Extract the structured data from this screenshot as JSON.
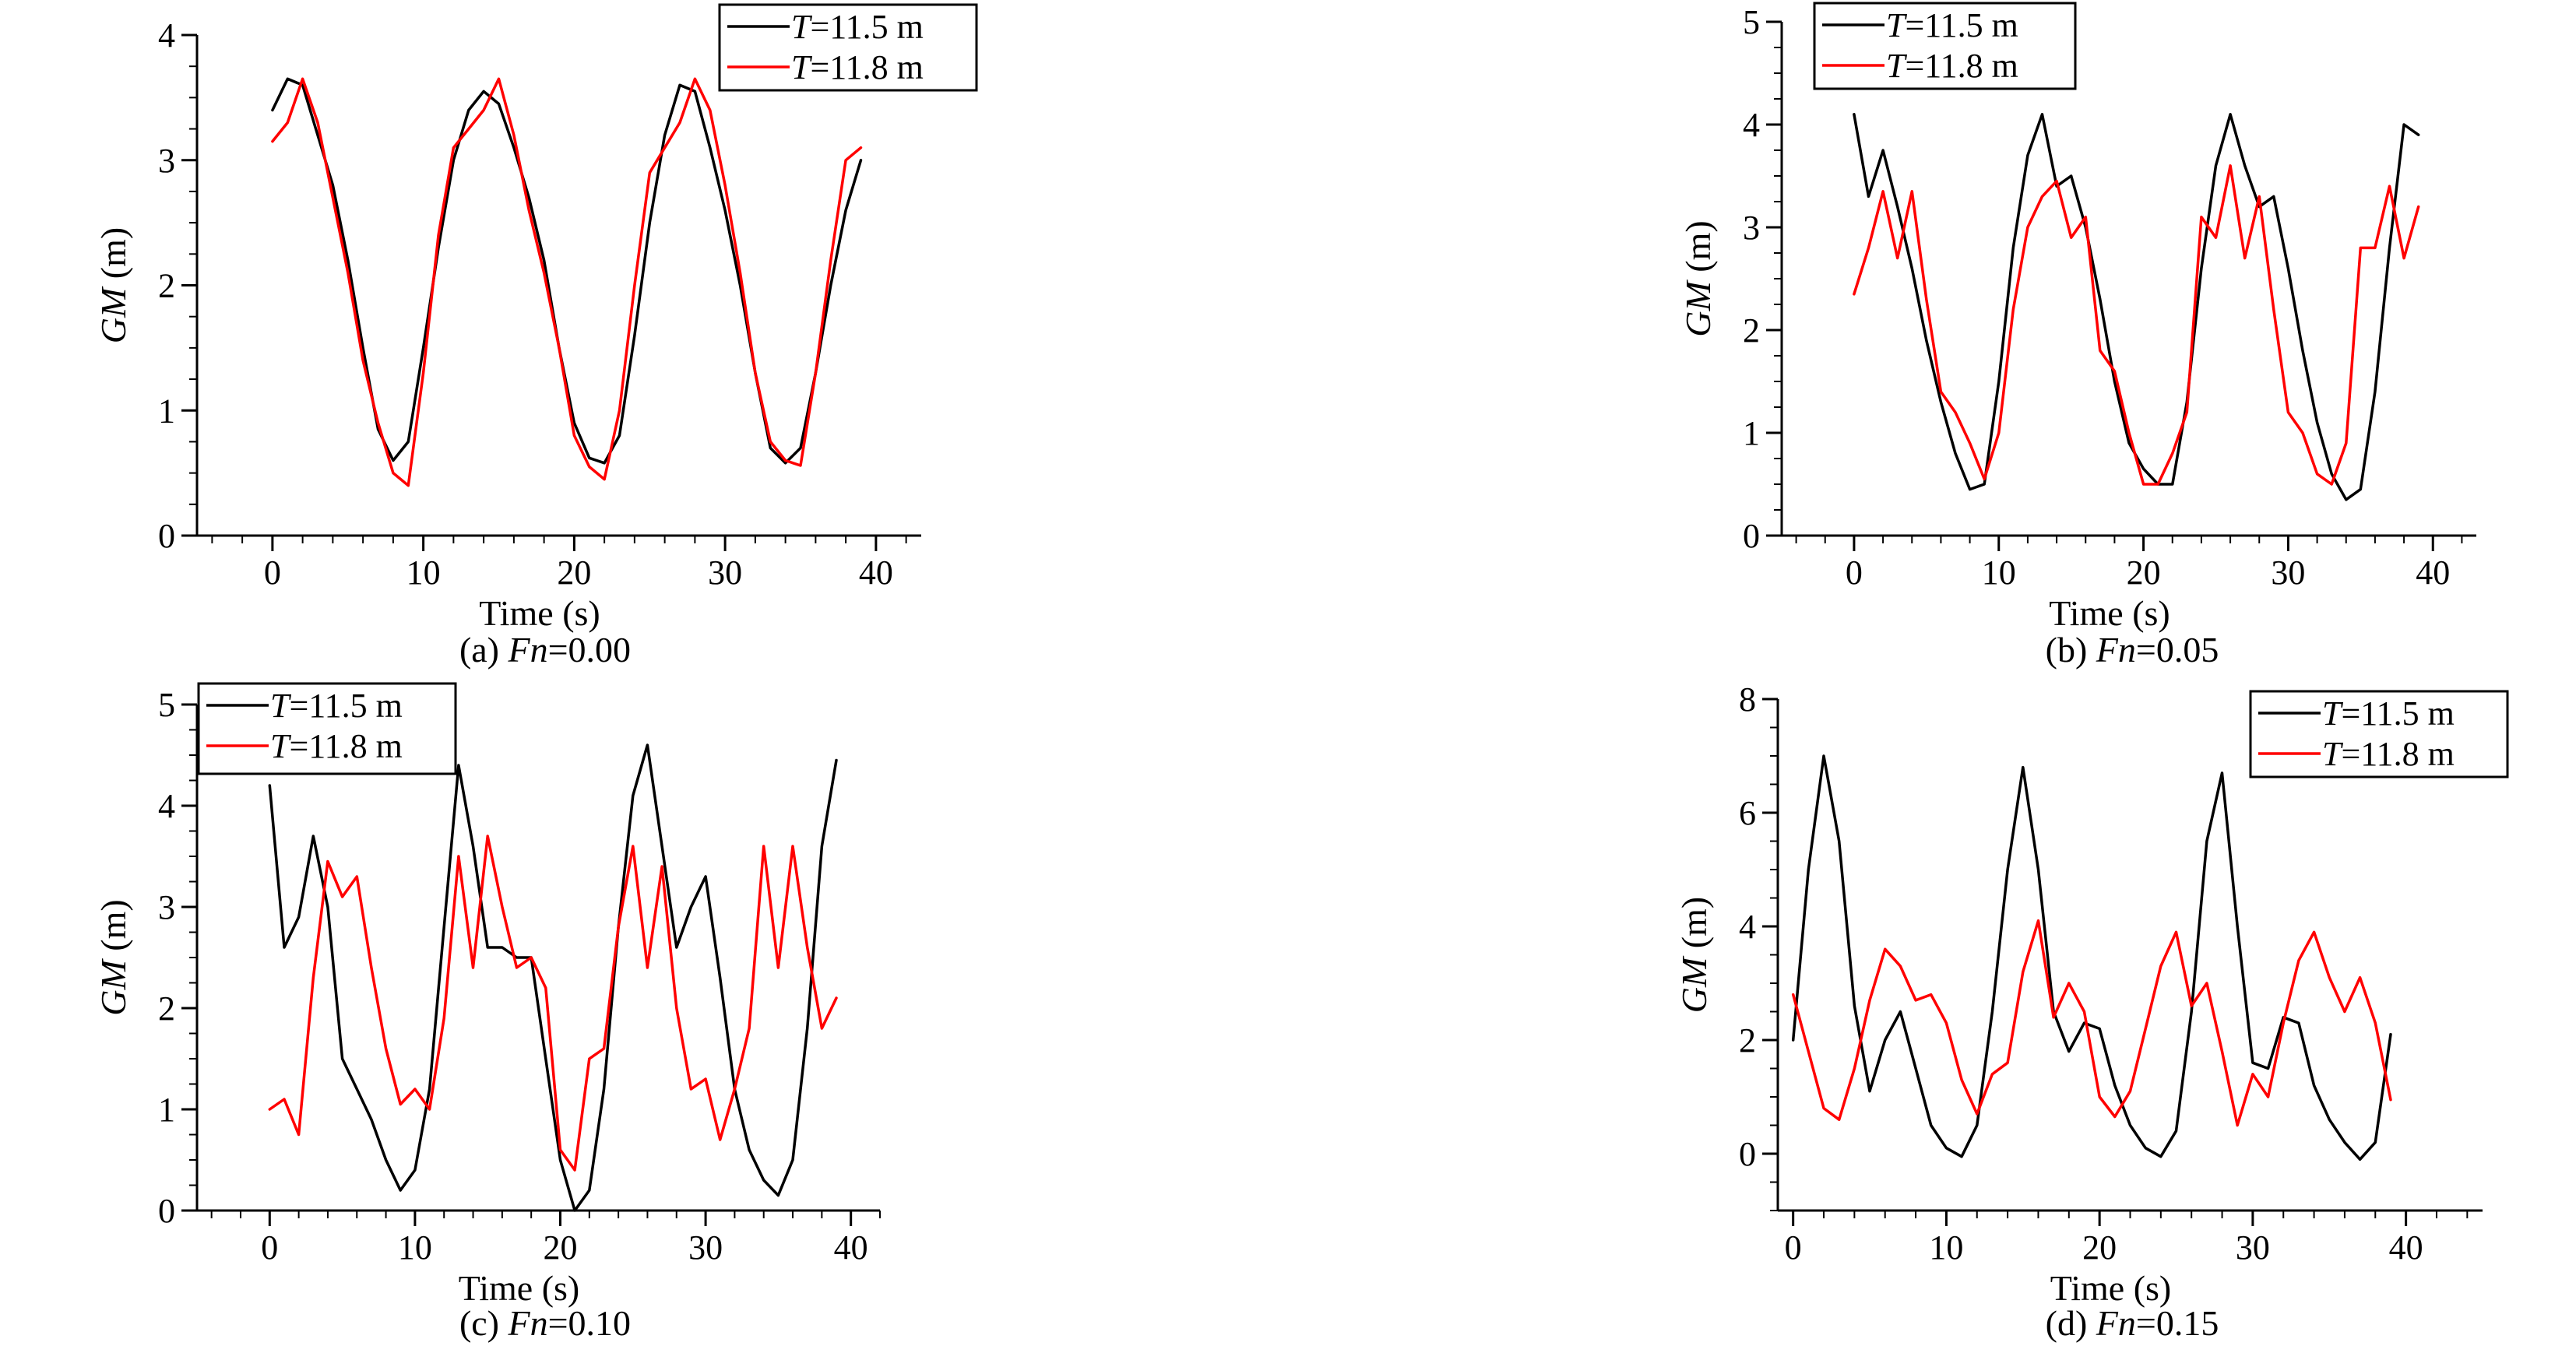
{
  "legend_prefix": "T",
  "colors": {
    "T11_5": "#000000",
    "T11_8": "#ff0000",
    "axis": "#000000",
    "background": "#ffffff"
  },
  "chart_data": [
    {
      "type": "line",
      "caption_prefix": "(a) ",
      "caption_var": "Fn",
      "caption_value": "=0.00",
      "xlabel": "Time (s)",
      "ylabel_var": "GM",
      "ylabel_unit": " (m)",
      "xlim": [
        -5,
        43
      ],
      "ylim": [
        0,
        4
      ],
      "xticks": [
        0,
        10,
        20,
        30,
        40
      ],
      "yticks": [
        0,
        1,
        2,
        3,
        4
      ],
      "xminor": 2,
      "yminor": 0.25,
      "legend_position": "top-right",
      "series": [
        {
          "name": "=11.5 m",
          "color": "#000000",
          "x": [
            0,
            1,
            2,
            3,
            4,
            5,
            6,
            7,
            8,
            9,
            10,
            11,
            12,
            13,
            14,
            15,
            16,
            17,
            18,
            19,
            20,
            21,
            22,
            23,
            24,
            25,
            26,
            27,
            28,
            29,
            30,
            31,
            32,
            33,
            34,
            35,
            36,
            37,
            38,
            39
          ],
          "y": [
            3.4,
            3.65,
            3.6,
            3.2,
            2.8,
            2.2,
            1.5,
            0.85,
            0.6,
            0.75,
            1.5,
            2.3,
            3.0,
            3.4,
            3.55,
            3.45,
            3.1,
            2.7,
            2.2,
            1.5,
            0.9,
            0.62,
            0.58,
            0.8,
            1.6,
            2.5,
            3.2,
            3.6,
            3.55,
            3.1,
            2.6,
            2.0,
            1.3,
            0.7,
            0.58,
            0.7,
            1.3,
            2.0,
            2.6,
            3.0
          ]
        },
        {
          "name": "=11.8 m",
          "color": "#ff0000",
          "x": [
            0,
            1,
            2,
            3,
            4,
            5,
            6,
            7,
            8,
            9,
            10,
            11,
            12,
            13,
            14,
            15,
            16,
            17,
            18,
            19,
            20,
            21,
            22,
            23,
            24,
            25,
            26,
            27,
            28,
            29,
            30,
            31,
            32,
            33,
            34,
            35,
            36,
            37,
            38,
            39
          ],
          "y": [
            3.15,
            3.3,
            3.65,
            3.3,
            2.7,
            2.1,
            1.4,
            0.9,
            0.5,
            0.4,
            1.3,
            2.4,
            3.1,
            3.25,
            3.4,
            3.65,
            3.2,
            2.6,
            2.1,
            1.5,
            0.8,
            0.55,
            0.45,
            1.0,
            2.0,
            2.9,
            3.1,
            3.3,
            3.65,
            3.4,
            2.8,
            2.1,
            1.3,
            0.75,
            0.6,
            0.56,
            1.3,
            2.2,
            3.0,
            3.1
          ]
        }
      ]
    },
    {
      "type": "line",
      "caption_prefix": "(b) ",
      "caption_var": "Fn",
      "caption_value": "=0.05",
      "xlabel": "Time (s)",
      "ylabel_var": "GM",
      "ylabel_unit": " (m)",
      "xlim": [
        -5,
        43
      ],
      "ylim": [
        0,
        5
      ],
      "xticks": [
        0,
        10,
        20,
        30,
        40
      ],
      "yticks": [
        0,
        1,
        2,
        3,
        4,
        5
      ],
      "xminor": 2,
      "yminor": 0.25,
      "legend_position": "top-left",
      "series": [
        {
          "name": "=11.5 m",
          "color": "#000000",
          "x": [
            0,
            1,
            2,
            3,
            4,
            5,
            6,
            7,
            8,
            9,
            10,
            11,
            12,
            13,
            14,
            15,
            16,
            17,
            18,
            19,
            20,
            21,
            22,
            23,
            24,
            25,
            26,
            27,
            28,
            29,
            30,
            31,
            32,
            33,
            34,
            35,
            36,
            37,
            38,
            39
          ],
          "y": [
            4.1,
            3.3,
            3.75,
            3.2,
            2.6,
            1.9,
            1.3,
            0.8,
            0.45,
            0.5,
            1.5,
            2.8,
            3.7,
            4.1,
            3.4,
            3.5,
            3.0,
            2.3,
            1.5,
            0.9,
            0.65,
            0.5,
            0.5,
            1.3,
            2.6,
            3.6,
            4.1,
            3.6,
            3.2,
            3.3,
            2.6,
            1.8,
            1.1,
            0.6,
            0.35,
            0.45,
            1.4,
            2.8,
            4.0,
            3.9
          ]
        },
        {
          "name": "=11.8 m",
          "color": "#ff0000",
          "x": [
            0,
            1,
            2,
            3,
            4,
            5,
            6,
            7,
            8,
            9,
            10,
            11,
            12,
            13,
            14,
            15,
            16,
            17,
            18,
            19,
            20,
            21,
            22,
            23,
            24,
            25,
            26,
            27,
            28,
            29,
            30,
            31,
            32,
            33,
            34,
            35,
            36,
            37,
            38,
            39
          ],
          "y": [
            2.35,
            2.8,
            3.35,
            2.7,
            3.35,
            2.3,
            1.4,
            1.2,
            0.9,
            0.55,
            1.0,
            2.2,
            3.0,
            3.3,
            3.45,
            2.9,
            3.1,
            1.8,
            1.6,
            1.0,
            0.5,
            0.5,
            0.8,
            1.2,
            3.1,
            2.9,
            3.6,
            2.7,
            3.3,
            2.2,
            1.2,
            1.0,
            0.6,
            0.5,
            0.9,
            2.8,
            2.8,
            3.4,
            2.7,
            3.2
          ]
        }
      ]
    },
    {
      "type": "line",
      "caption_prefix": "(c) ",
      "caption_var": "Fn",
      "caption_value": "=0.10",
      "xlabel": "Time (s)",
      "ylabel_var": "GM",
      "ylabel_unit": " (m)",
      "xlim": [
        -5,
        42
      ],
      "ylim": [
        0,
        5
      ],
      "xticks": [
        0,
        10,
        20,
        30,
        40
      ],
      "yticks": [
        0,
        1,
        2,
        3,
        4,
        5
      ],
      "xminor": 2,
      "yminor": 0.25,
      "legend_position": "top-left",
      "series": [
        {
          "name": "=11.5 m",
          "color": "#000000",
          "x": [
            0,
            1,
            2,
            3,
            4,
            5,
            6,
            7,
            8,
            9,
            10,
            11,
            12,
            13,
            14,
            15,
            16,
            17,
            18,
            19,
            20,
            21,
            22,
            23,
            24,
            25,
            26,
            27,
            28,
            29,
            30,
            31,
            32,
            33,
            34,
            35,
            36,
            37,
            38,
            39
          ],
          "y": [
            4.2,
            2.6,
            2.9,
            3.7,
            3.0,
            1.5,
            1.2,
            0.9,
            0.5,
            0.2,
            0.4,
            1.2,
            2.8,
            4.4,
            3.6,
            2.6,
            2.6,
            2.5,
            2.5,
            1.5,
            0.5,
            0.0,
            0.2,
            1.2,
            2.8,
            4.1,
            4.6,
            3.6,
            2.6,
            3.0,
            3.3,
            2.3,
            1.2,
            0.6,
            0.3,
            0.15,
            0.5,
            1.8,
            3.6,
            4.45
          ]
        },
        {
          "name": "=11.8 m",
          "color": "#ff0000",
          "x": [
            0,
            1,
            2,
            3,
            4,
            5,
            6,
            7,
            8,
            9,
            10,
            11,
            12,
            13,
            14,
            15,
            16,
            17,
            18,
            19,
            20,
            21,
            22,
            23,
            24,
            25,
            26,
            27,
            28,
            29,
            30,
            31,
            32,
            33,
            34,
            35,
            36,
            37,
            38,
            39
          ],
          "y": [
            1.0,
            1.1,
            0.75,
            2.3,
            3.45,
            3.1,
            3.3,
            2.4,
            1.6,
            1.05,
            1.2,
            1.0,
            1.9,
            3.5,
            2.4,
            3.7,
            3.0,
            2.4,
            2.5,
            2.2,
            0.6,
            0.4,
            1.5,
            1.6,
            2.8,
            3.6,
            2.4,
            3.4,
            2.0,
            1.2,
            1.3,
            0.7,
            1.2,
            1.8,
            3.6,
            2.4,
            3.6,
            2.6,
            1.8,
            2.1
          ]
        }
      ]
    },
    {
      "type": "line",
      "caption_prefix": "(d) ",
      "caption_var": "Fn",
      "caption_value": "=0.15",
      "xlabel": "Time (s)",
      "ylabel_var": "GM",
      "ylabel_unit": " (m)",
      "xlim": [
        -1,
        45
      ],
      "ylim": [
        -1,
        8
      ],
      "xticks": [
        0,
        10,
        20,
        30,
        40
      ],
      "yticks": [
        0,
        2,
        4,
        6,
        8
      ],
      "xminor": 2,
      "yminor": 0.5,
      "legend_position": "top-right",
      "series": [
        {
          "name": "=11.5 m",
          "color": "#000000",
          "x": [
            0,
            1,
            2,
            3,
            4,
            5,
            6,
            7,
            8,
            9,
            10,
            11,
            12,
            13,
            14,
            15,
            16,
            17,
            18,
            19,
            20,
            21,
            22,
            23,
            24,
            25,
            26,
            27,
            28,
            29,
            30,
            31,
            32,
            33,
            34,
            35,
            36,
            37,
            38,
            39
          ],
          "y": [
            2.0,
            5.0,
            7.0,
            5.5,
            2.6,
            1.1,
            2.0,
            2.5,
            1.5,
            0.5,
            0.1,
            -0.05,
            0.5,
            2.5,
            5.0,
            6.8,
            5.0,
            2.5,
            1.8,
            2.3,
            2.2,
            1.2,
            0.5,
            0.1,
            -0.05,
            0.4,
            2.5,
            5.5,
            6.7,
            4.0,
            1.6,
            1.5,
            2.4,
            2.3,
            1.2,
            0.6,
            0.2,
            -0.1,
            0.2,
            2.1
          ]
        },
        {
          "name": "=11.8 m",
          "color": "#ff0000",
          "x": [
            0,
            1,
            2,
            3,
            4,
            5,
            6,
            7,
            8,
            9,
            10,
            11,
            12,
            13,
            14,
            15,
            16,
            17,
            18,
            19,
            20,
            21,
            22,
            23,
            24,
            25,
            26,
            27,
            28,
            29,
            30,
            31,
            32,
            33,
            34,
            35,
            36,
            37,
            38,
            39
          ],
          "y": [
            2.8,
            1.8,
            0.8,
            0.6,
            1.5,
            2.7,
            3.6,
            3.3,
            2.7,
            2.8,
            2.3,
            1.3,
            0.7,
            1.4,
            1.6,
            3.2,
            4.1,
            2.4,
            3.0,
            2.5,
            1.0,
            0.65,
            1.1,
            2.2,
            3.3,
            3.9,
            2.6,
            3.0,
            1.8,
            0.5,
            1.4,
            1.0,
            2.3,
            3.4,
            3.9,
            3.1,
            2.5,
            3.1,
            2.3,
            0.95
          ]
        }
      ]
    }
  ]
}
